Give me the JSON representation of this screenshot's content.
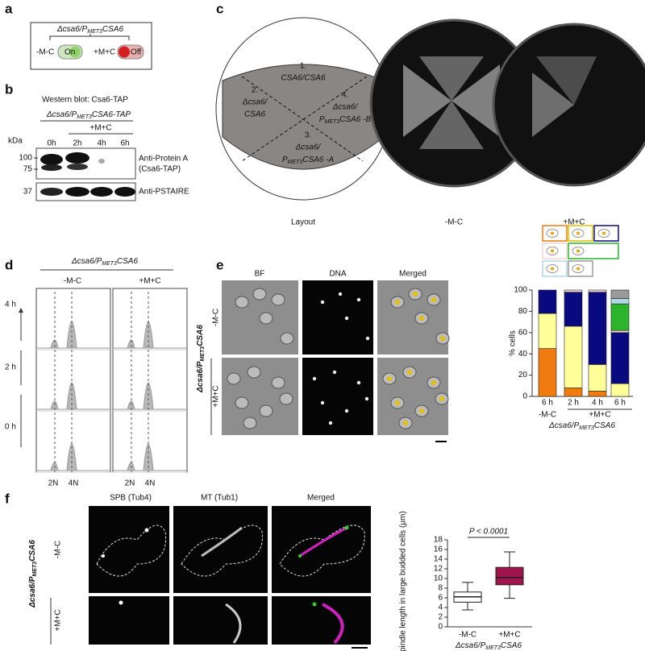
{
  "panel_a": {
    "letter": "a",
    "genotype": {
      "pre": "Δcsa6/P",
      "sub": "MET3",
      "post": "CSA6"
    },
    "off_cond": "-M-C",
    "on_text": "On",
    "on_cond": "+M+C",
    "off_text": "Off"
  },
  "panel_b": {
    "letter": "b",
    "title": "Western blot: Csa6-TAP",
    "genotype": {
      "pre": "Δcsa6/P",
      "sub": "MET3",
      "post": "CSA6-TAP"
    },
    "treatment": "+M+C",
    "lanes": [
      "0h",
      "2h",
      "4h",
      "6h"
    ],
    "unit": "kDa",
    "markers": [
      "100",
      "75",
      "37"
    ],
    "antibody1": "Anti-Protein A",
    "antibody1_note": "(Csa6-TAP)",
    "antibody2": "Anti-PSTAIRE"
  },
  "panel_c": {
    "letter": "c",
    "sectors": [
      {
        "num": "1.",
        "lines": [
          "CSA6/CSA6"
        ]
      },
      {
        "num": "2.",
        "lines": [
          "Δcsa6/",
          "CSA6"
        ]
      },
      {
        "num": "3.",
        "lines": [
          "Δcsa6/"
        ],
        "strain": {
          "pre": "P",
          "sub": "MET3",
          "post": "CSA6 -A"
        }
      },
      {
        "num": "4.",
        "lines": [
          "Δcsa6/"
        ],
        "strain": {
          "pre": "P",
          "sub": "MET3",
          "post": "CSA6 -B"
        }
      }
    ],
    "plate_labels": [
      "Layout",
      "-M-C",
      "+M+C"
    ]
  },
  "panel_d": {
    "letter": "d",
    "genotype": {
      "pre": "Δcsa6/P",
      "sub": "MET3",
      "post": "CSA6"
    },
    "conditions": [
      "-M-C",
      "+M+C"
    ],
    "times": [
      "4 h",
      "2 h",
      "0 h"
    ],
    "ploidy": [
      "2N",
      "4N"
    ]
  },
  "panel_e": {
    "letter": "e",
    "channels": [
      "BF",
      "DNA",
      "Merged"
    ],
    "genotype": {
      "pre": "Δcsa6/P",
      "sub": "MET3",
      "post": "CSA6"
    },
    "conditions": [
      "-M-C",
      "+M+C"
    ]
  },
  "panel_f": {
    "letter": "f",
    "channels": [
      "SPB (Tub4)",
      "MT (Tub1)",
      "Merged"
    ],
    "genotype": {
      "pre": "Δcsa6/P",
      "sub": "MET3",
      "post": "CSA6"
    },
    "conditions": [
      "-M-C",
      "+M+C"
    ]
  },
  "chart_data": [
    {
      "type": "bar",
      "stacked": true,
      "ylabel": "% cells",
      "categories": [
        "6 h",
        "2 h",
        "4 h",
        "6 h"
      ],
      "group_labels": [
        "-M-C",
        "+M+C"
      ],
      "xlabel": {
        "pre": "Δcsa6/P",
        "sub": "MET3",
        "post": "CSA6"
      },
      "ylim": [
        0,
        100
      ],
      "yticks": [
        0,
        20,
        40,
        60,
        80,
        100
      ],
      "series": [
        {
          "color": "#f07c0f",
          "values": [
            45,
            8,
            5,
            0
          ]
        },
        {
          "color": "#ffff99",
          "values": [
            33,
            58,
            25,
            12
          ]
        },
        {
          "color": "#0a0a80",
          "values": [
            22,
            32,
            68,
            48
          ]
        },
        {
          "color": "#f6d6d6",
          "values": [
            0,
            2,
            2,
            2
          ]
        },
        {
          "color": "#2cb52c",
          "values": [
            0,
            0,
            0,
            25
          ]
        },
        {
          "color": "#b0d8e8",
          "values": [
            0,
            0,
            0,
            5
          ]
        },
        {
          "color": "#9a9a9a",
          "values": [
            0,
            0,
            0,
            8
          ]
        }
      ]
    },
    {
      "type": "box",
      "ylabel": "Spindle length in large budded cells (μm)",
      "annotation": "P < 0.0001",
      "categories": [
        "-M-C",
        "+M+C"
      ],
      "xlabel": {
        "pre": "Δcsa6/P",
        "sub": "MET3",
        "post": "CSA6"
      },
      "ylim": [
        0,
        18
      ],
      "yticks": [
        0,
        2,
        4,
        6,
        8,
        10,
        12,
        14,
        16,
        18
      ],
      "boxes": [
        {
          "min": 3.5,
          "q1": 5.1,
          "median": 6.2,
          "q3": 7.2,
          "max": 9.2,
          "color": "#ffffff"
        },
        {
          "min": 5.9,
          "q1": 8.7,
          "median": 10.2,
          "q3": 12.3,
          "max": 15.5,
          "color": "#a0144f"
        }
      ]
    }
  ]
}
